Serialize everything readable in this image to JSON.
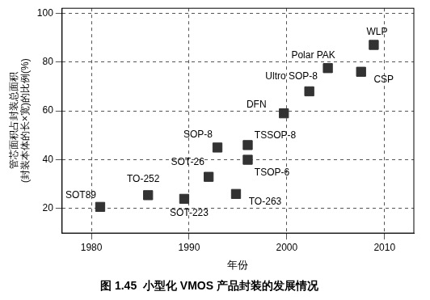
{
  "chart_data": {
    "type": "scatter",
    "title": "图 1.45  小型化 VMOS 产品封装的发展情况",
    "x_label": "年份",
    "y_label": [
      "管芯面积占封装总面积",
      "(封装本体的长×宽)的比例(%)"
    ],
    "point_labels": [
      "SOT89",
      "TO-252",
      "SOT-223",
      "SOT-26",
      "SOP-8",
      "TO-263",
      "TSOP-6",
      "TSSOP-8",
      "DFN",
      "Ultro SOP-8",
      "Polar PAK",
      "CSP",
      "WLP"
    ],
    "x": [
      1980.9,
      1985.8,
      1989.5,
      1992,
      1992.9,
      1994.8,
      1996,
      1996,
      1999.7,
      2002.3,
      2004.2,
      2007.6,
      2008.9
    ],
    "values": [
      20.7,
      25.5,
      24,
      33,
      45,
      26,
      40,
      46,
      59,
      68,
      77.5,
      76,
      87
    ],
    "color": "#333333",
    "marker": "square",
    "xlim": [
      1977,
      2013
    ],
    "xticks": [
      1980,
      1990,
      2000,
      2010
    ],
    "ylim": [
      10,
      102
    ],
    "yticks": [
      20,
      40,
      60,
      80,
      100
    ],
    "grid": true
  }
}
